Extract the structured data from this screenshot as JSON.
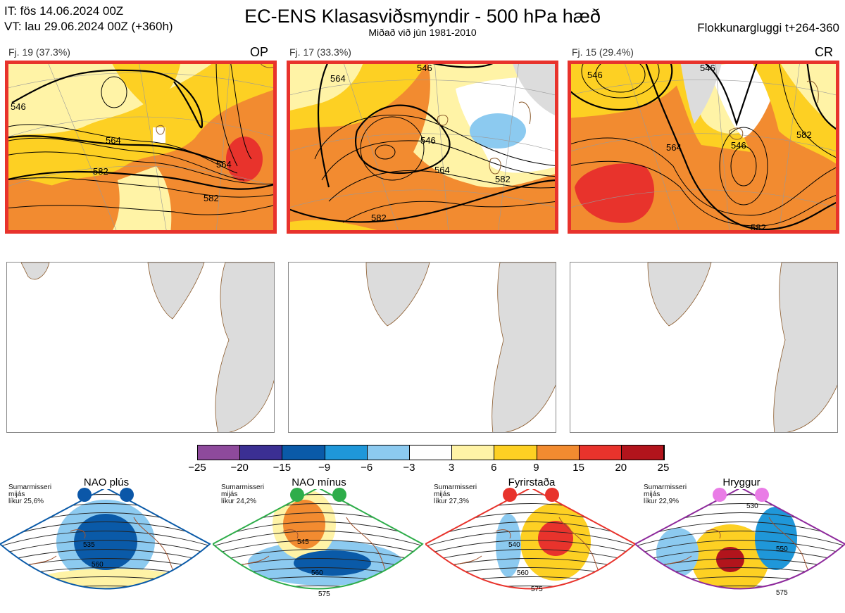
{
  "header": {
    "it_line": "IT: fös 14.06.2024 00Z",
    "vt_line": "VT: lau 29.06.2024 00Z  (+360h)",
    "title": "EC-ENS Klasasviðsmyndir - 500 hPa hæð",
    "subtitle": "Miðað við jún 1981-2010",
    "window": "Flokkunargluggi t+264-360"
  },
  "clusters": [
    {
      "label": "Fj. 19 (37.3%)",
      "code": "OP",
      "members": 19,
      "percent": 37.3,
      "contours": [
        "546",
        "564",
        "582",
        "582",
        "564"
      ]
    },
    {
      "label": "Fj. 17 (33.3%)",
      "code": "",
      "members": 17,
      "percent": 33.3,
      "contours": [
        "564",
        "546",
        "564",
        "582",
        "582",
        "546"
      ]
    },
    {
      "label": "Fj. 15 (29.4%)",
      "code": "CR",
      "members": 15,
      "percent": 29.4,
      "contours": [
        "546",
        "564",
        "582",
        "546",
        "582",
        "546"
      ]
    }
  ],
  "colorbar": {
    "ticks": [
      "−25",
      "−20",
      "−15",
      "−9",
      "−6",
      "−3",
      "3",
      "6",
      "9",
      "15",
      "20",
      "25"
    ],
    "colors": [
      "#8e4a9c",
      "#3b2f93",
      "#0a5aa8",
      "#1f97d9",
      "#8ccaf0",
      "#ffffff",
      "#fff3a6",
      "#fdd023",
      "#f28b30",
      "#e8332c",
      "#b2141c"
    ]
  },
  "regimes": [
    {
      "name": "NAO plús",
      "season": "Sumarmisseri",
      "avg": "mijás",
      "prob": "líkur 25,6%",
      "dot_color": "#0b57a8",
      "contours": [
        "535",
        "560"
      ],
      "border": "#0a5aa8"
    },
    {
      "name": "NAO mínus",
      "season": "Sumarmisseri",
      "avg": "mijás",
      "prob": "líkur 24,2%",
      "dot_color": "#2ead4a",
      "contours": [
        "545",
        "560",
        "575"
      ],
      "border": "#2ead4a"
    },
    {
      "name": "Fyrirstaða",
      "season": "Sumarmisseri",
      "avg": "mijás",
      "prob": "líkur 27,3%",
      "dot_color": "#e8332c",
      "contours": [
        "540",
        "560",
        "575"
      ],
      "border": "#e8332c"
    },
    {
      "name": "Hryggur",
      "season": "Sumarmisseri",
      "avg": "mijás",
      "prob": "líkur 22,9%",
      "dot_color": "#e97ce6",
      "contours": [
        "530",
        "550",
        "575"
      ],
      "border": "#8e2a9c"
    }
  ]
}
